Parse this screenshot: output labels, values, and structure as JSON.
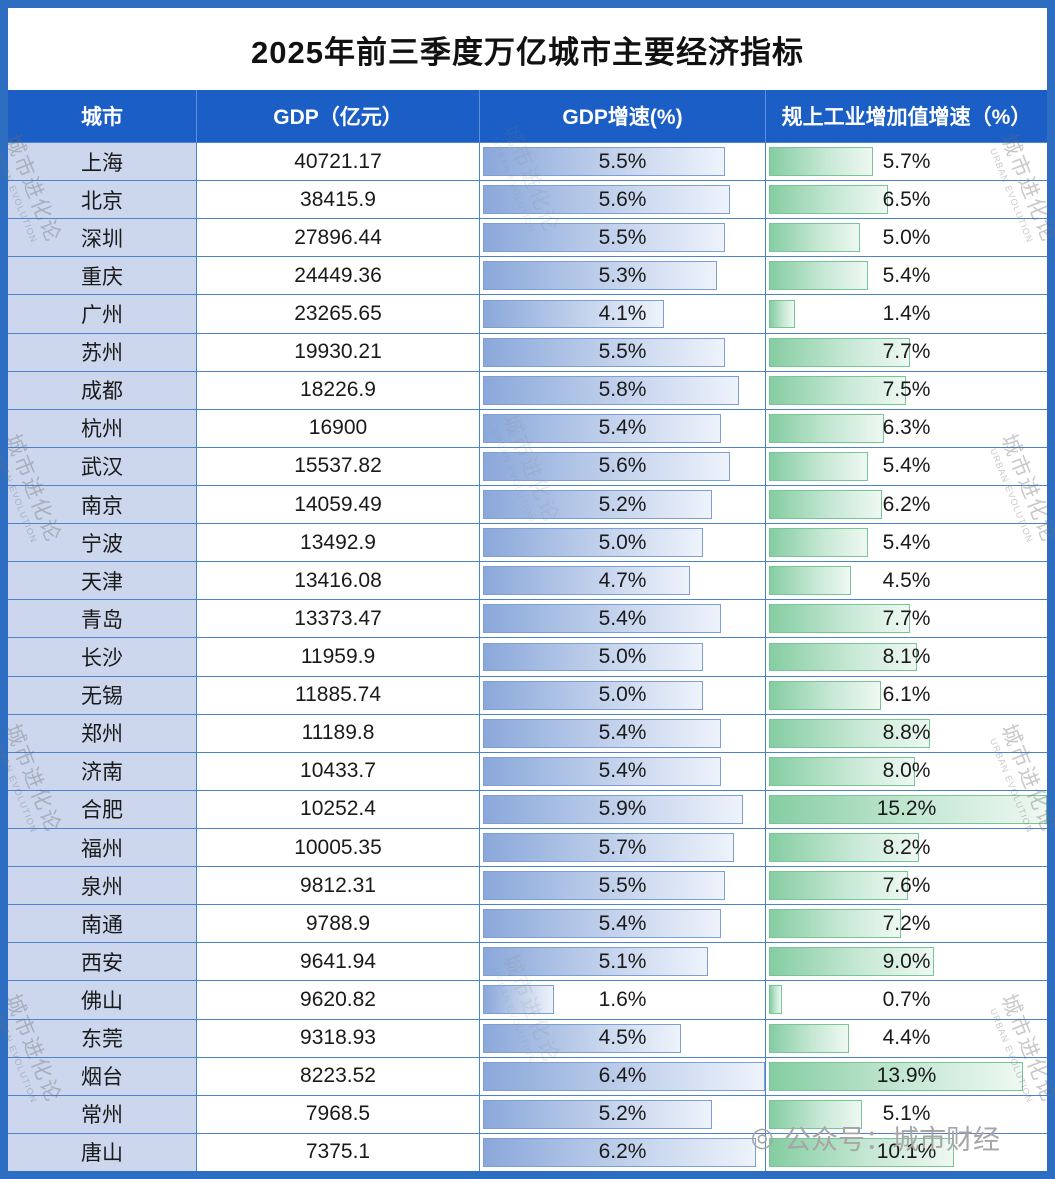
{
  "title": "2025年前三季度万亿城市主要经济指标",
  "watermark": {
    "text": "城市进化论",
    "subtext": "URBAN EVOLUTION"
  },
  "footer": {
    "icon": "◎",
    "text": "公众号：城市财经"
  },
  "colors": {
    "frame_border": "#2e6ec2",
    "header_bg": "#1a5ec6",
    "city_cell_bg": "#ccd7ee",
    "grid_line": "#4d82cd",
    "gdp_growth_bar": "#8aa8da",
    "industry_growth_bar": "#85cda2"
  },
  "chart_data": {
    "type": "table",
    "title": "2025年前三季度万亿城市主要经济指标",
    "columns": [
      "城市",
      "GDP（亿元）",
      "GDP增速(%)",
      "规上工业增加值增速（%）"
    ],
    "databar_columns": {
      "gdp_growth": {
        "style": "blue-gradient-databar",
        "axis_min": 0,
        "axis_max": 6.4
      },
      "industry_growth": {
        "style": "green-gradient-databar",
        "axis_min": 0,
        "axis_max": 15.2
      }
    },
    "rows": [
      {
        "city": "上海",
        "gdp": "40721.17",
        "gdp_growth": "5.5",
        "industry_growth": "5.7"
      },
      {
        "city": "北京",
        "gdp": "38415.9",
        "gdp_growth": "5.6",
        "industry_growth": "6.5"
      },
      {
        "city": "深圳",
        "gdp": "27896.44",
        "gdp_growth": "5.5",
        "industry_growth": "5.0"
      },
      {
        "city": "重庆",
        "gdp": "24449.36",
        "gdp_growth": "5.3",
        "industry_growth": "5.4"
      },
      {
        "city": "广州",
        "gdp": "23265.65",
        "gdp_growth": "4.1",
        "industry_growth": "1.4"
      },
      {
        "city": "苏州",
        "gdp": "19930.21",
        "gdp_growth": "5.5",
        "industry_growth": "7.7"
      },
      {
        "city": "成都",
        "gdp": "18226.9",
        "gdp_growth": "5.8",
        "industry_growth": "7.5"
      },
      {
        "city": "杭州",
        "gdp": "16900",
        "gdp_growth": "5.4",
        "industry_growth": "6.3"
      },
      {
        "city": "武汉",
        "gdp": "15537.82",
        "gdp_growth": "5.6",
        "industry_growth": "5.4"
      },
      {
        "city": "南京",
        "gdp": "14059.49",
        "gdp_growth": "5.2",
        "industry_growth": "6.2"
      },
      {
        "city": "宁波",
        "gdp": "13492.9",
        "gdp_growth": "5.0",
        "industry_growth": "5.4"
      },
      {
        "city": "天津",
        "gdp": "13416.08",
        "gdp_growth": "4.7",
        "industry_growth": "4.5"
      },
      {
        "city": "青岛",
        "gdp": "13373.47",
        "gdp_growth": "5.4",
        "industry_growth": "7.7"
      },
      {
        "city": "长沙",
        "gdp": "11959.9",
        "gdp_growth": "5.0",
        "industry_growth": "8.1"
      },
      {
        "city": "无锡",
        "gdp": "11885.74",
        "gdp_growth": "5.0",
        "industry_growth": "6.1"
      },
      {
        "city": "郑州",
        "gdp": "11189.8",
        "gdp_growth": "5.4",
        "industry_growth": "8.8"
      },
      {
        "city": "济南",
        "gdp": "10433.7",
        "gdp_growth": "5.4",
        "industry_growth": "8.0"
      },
      {
        "city": "合肥",
        "gdp": "10252.4",
        "gdp_growth": "5.9",
        "industry_growth": "15.2"
      },
      {
        "city": "福州",
        "gdp": "10005.35",
        "gdp_growth": "5.7",
        "industry_growth": "8.2"
      },
      {
        "city": "泉州",
        "gdp": "9812.31",
        "gdp_growth": "5.5",
        "industry_growth": "7.6"
      },
      {
        "city": "南通",
        "gdp": "9788.9",
        "gdp_growth": "5.4",
        "industry_growth": "7.2"
      },
      {
        "city": "西安",
        "gdp": "9641.94",
        "gdp_growth": "5.1",
        "industry_growth": "9.0"
      },
      {
        "city": "佛山",
        "gdp": "9620.82",
        "gdp_growth": "1.6",
        "industry_growth": "0.7"
      },
      {
        "city": "东莞",
        "gdp": "9318.93",
        "gdp_growth": "4.5",
        "industry_growth": "4.4"
      },
      {
        "city": "烟台",
        "gdp": "8223.52",
        "gdp_growth": "6.4",
        "industry_growth": "13.9"
      },
      {
        "city": "常州",
        "gdp": "7968.5",
        "gdp_growth": "5.2",
        "industry_growth": "5.1"
      },
      {
        "city": "唐山",
        "gdp": "7375.1",
        "gdp_growth": "6.2",
        "industry_growth": "10.1"
      }
    ]
  }
}
